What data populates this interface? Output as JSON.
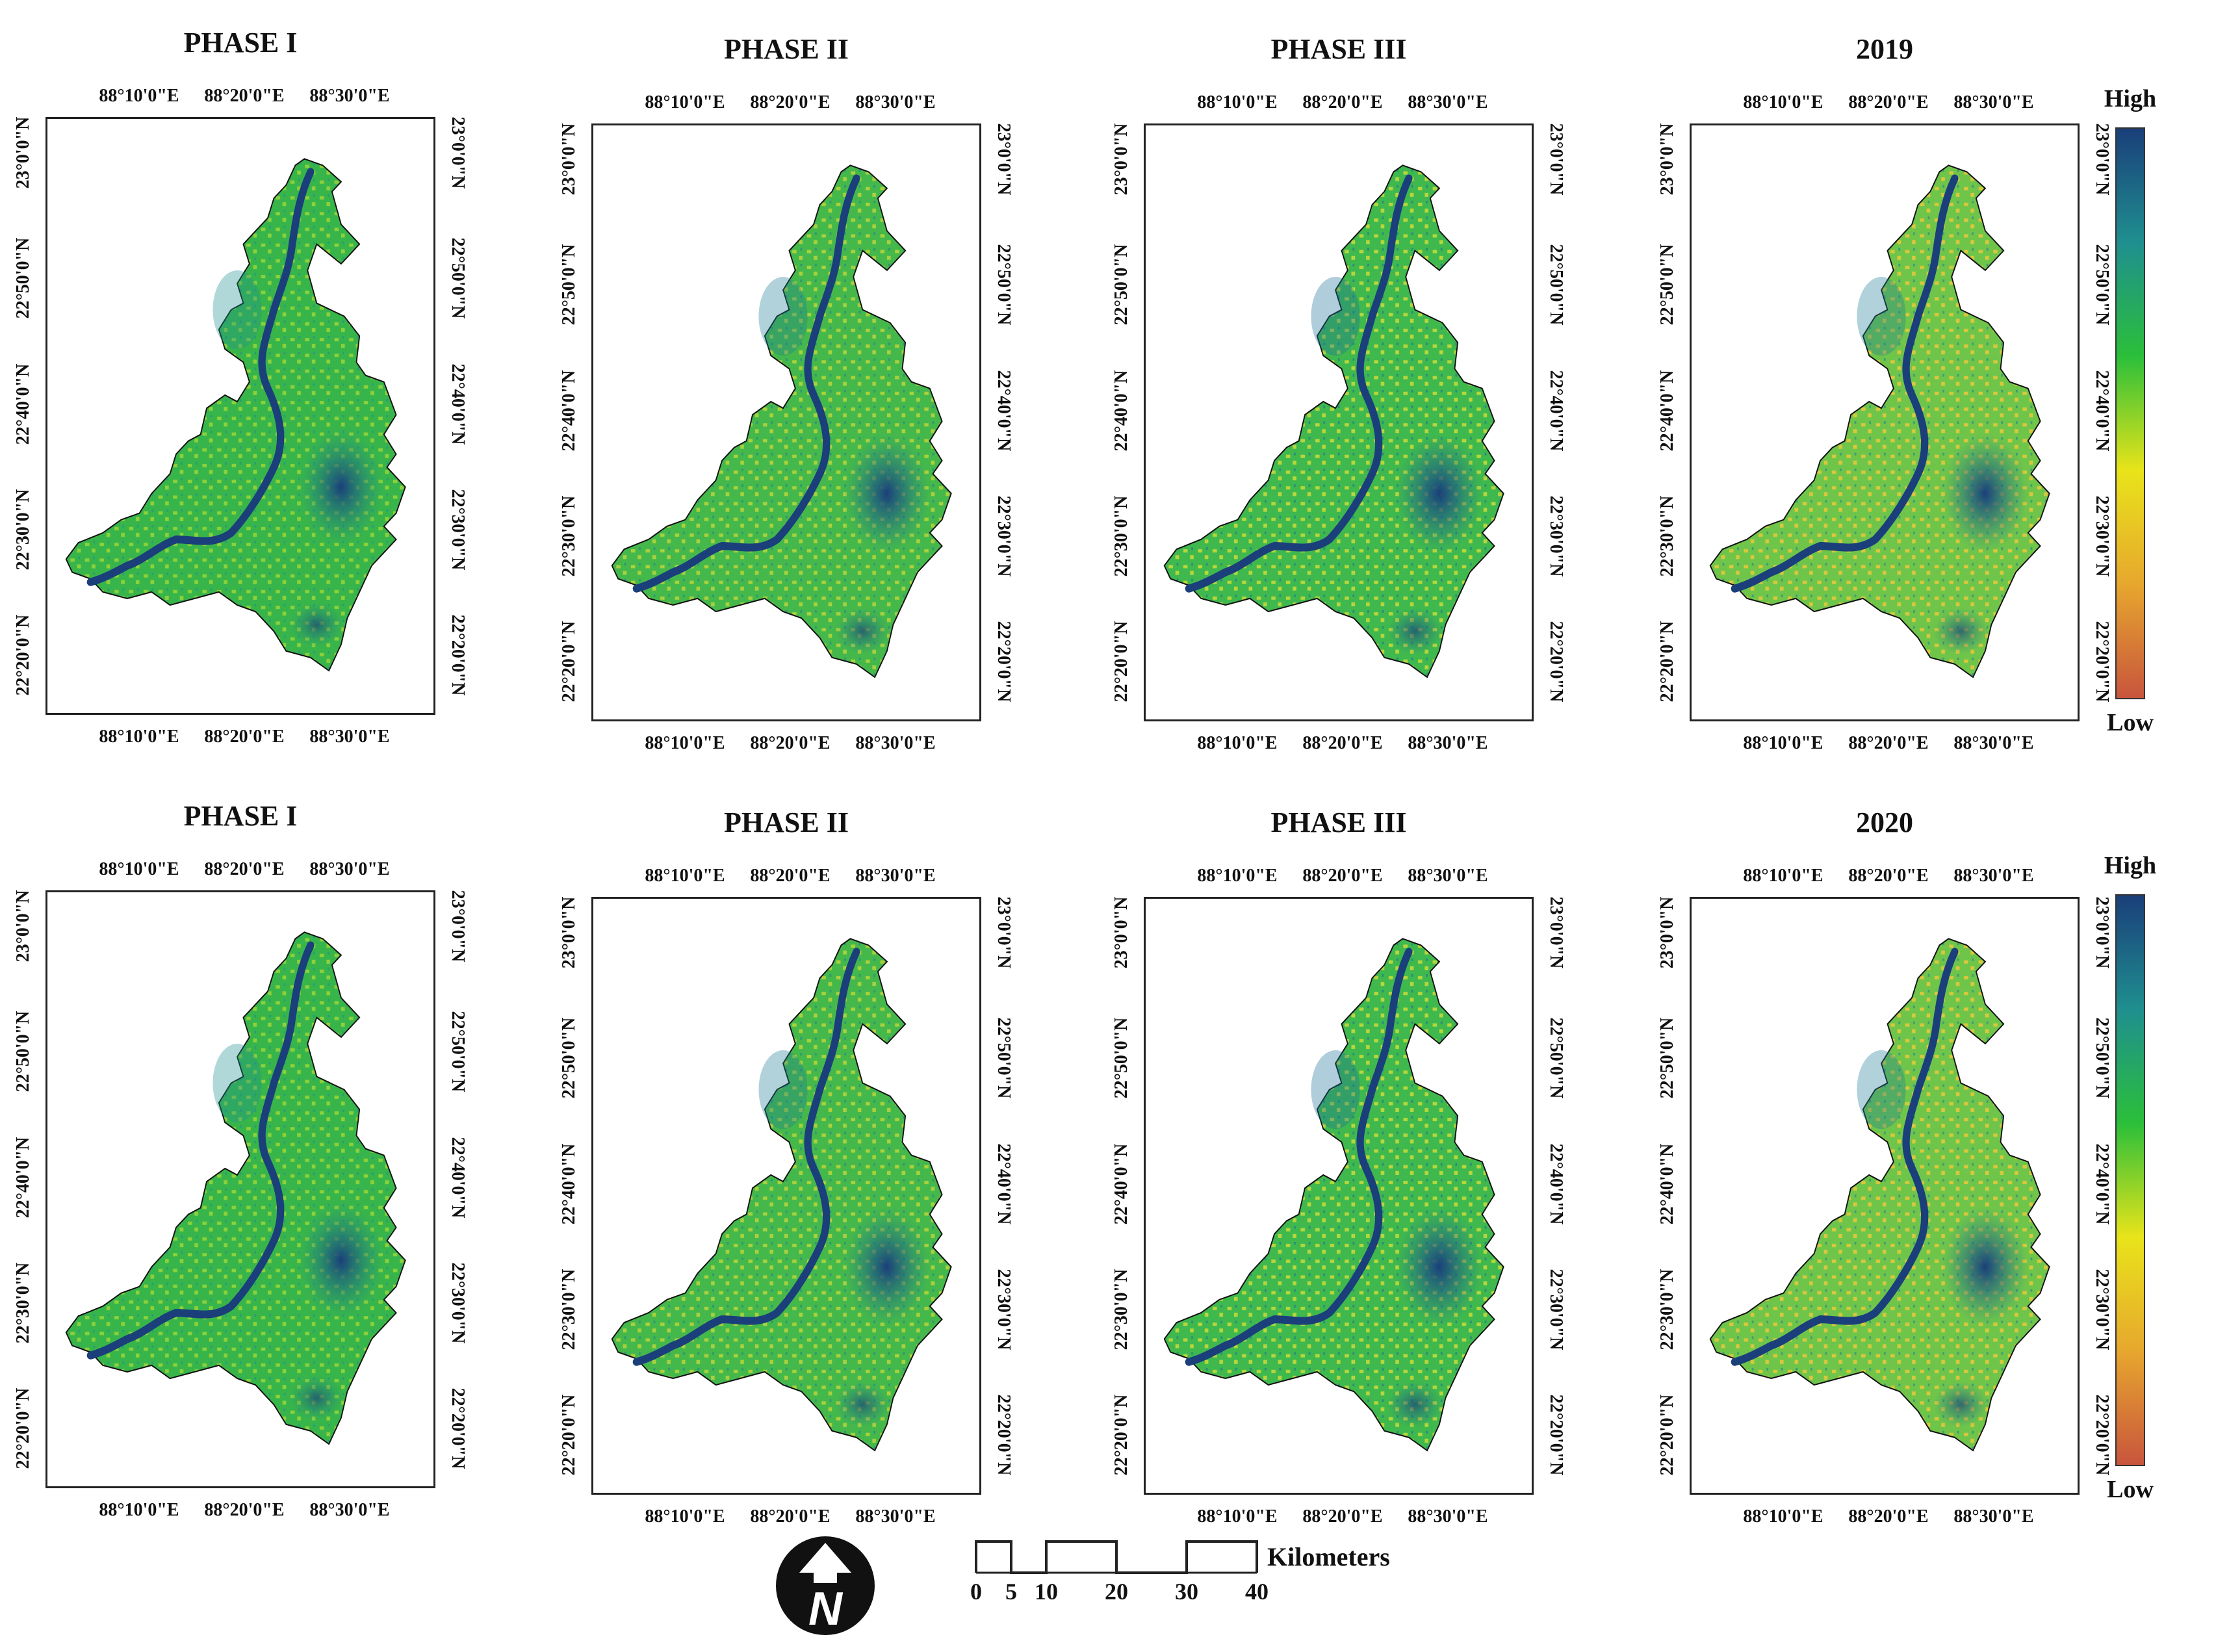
{
  "panels": [
    {
      "title": "PHASE I",
      "variant": 0
    },
    {
      "title": "PHASE II",
      "variant": 1
    },
    {
      "title": "PHASE III",
      "variant": 2
    },
    {
      "title": "2019",
      "variant": 3
    },
    {
      "title": "PHASE I",
      "variant": 0
    },
    {
      "title": "PHASE II",
      "variant": 1
    },
    {
      "title": "PHASE III",
      "variant": 2
    },
    {
      "title": "2020",
      "variant": 3
    }
  ],
  "longitude_labels": [
    "88°10'0\"E",
    "88°20'0\"E",
    "88°30'0\"E"
  ],
  "latitude_labels": [
    "23°0'0\"N",
    "22°50'0\"N",
    "22°40'0\"N",
    "22°30'0\"N",
    "22°20'0\"N"
  ],
  "legend": {
    "high_label": "High",
    "low_label": "Low",
    "colors": [
      "#1a3f7a",
      "#1f8f8f",
      "#2bbf3a",
      "#e8e41a",
      "#e7a72e",
      "#c8553d"
    ]
  },
  "north_arrow": {
    "letter": "N",
    "icon": "north-arrow-icon"
  },
  "scale_bar": {
    "labels": [
      "0",
      "5",
      "10",
      "20",
      "30",
      "40"
    ],
    "unit": "Kilometers"
  }
}
